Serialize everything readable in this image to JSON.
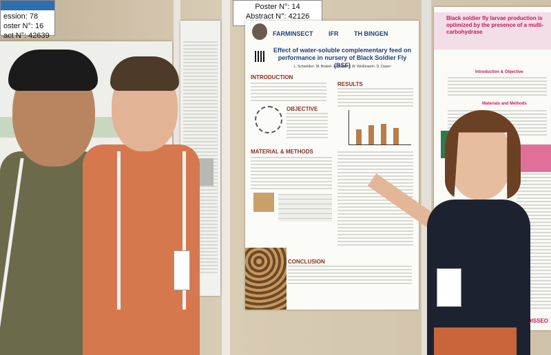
{
  "left_tag": {
    "session": "ession: 78",
    "poster": "oster N°: 16",
    "abstract": "act N°: 42639"
  },
  "center_tag": {
    "poster": "Poster N°: 14",
    "abstract": "Abstract N°: 42126"
  },
  "main_poster": {
    "logos": [
      "FARMINSECT",
      "IFR",
      "TH BINGEN"
    ],
    "title": "Effect of water-soluble complementary feed on performance in nursery of Black Soldier Fly (BSF)",
    "authors": "L. Schneider¹, M. Bräkel¹, A. Hanzer¹, W. Weißmann², D. Duwe³",
    "sections": {
      "introduction": "INTRODUCTION",
      "objective": "OBJECTIVE",
      "results": "RESULTS",
      "methods": "MATERIAL & METHODS",
      "conclusion": "CONCLUSION"
    }
  },
  "right_poster": {
    "title": "Black soldier fly larvae production is optimized by the presence of a multi-carbohydrase",
    "sections": {
      "intro": "Introduction & Objective",
      "methods": "Materials and Methods"
    },
    "footer": "ADISSEO"
  },
  "colors": {
    "wall": "#cdbfa8",
    "poster_title": "#1f3f80",
    "section_heading": "#8a2f1f",
    "right_title_bg": "#c7175a"
  }
}
